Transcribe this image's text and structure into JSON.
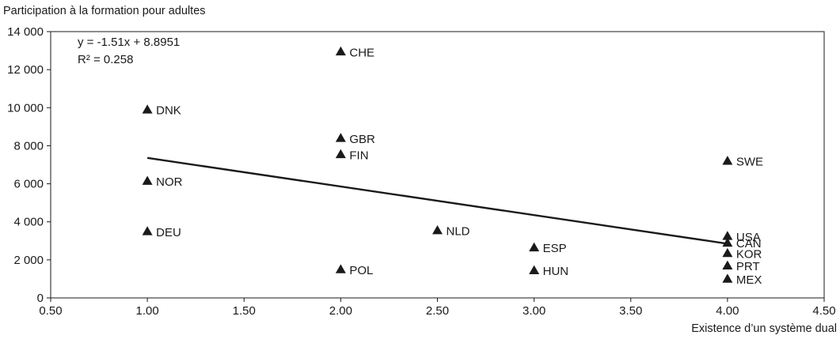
{
  "chart_data": {
    "type": "scatter",
    "ylabel": "Participation à la formation pour adultes",
    "xlabel": "Existence d’un système dual",
    "xlim": [
      0.5,
      4.5
    ],
    "ylim": [
      0,
      14000
    ],
    "x_ticks": [
      0.5,
      1.0,
      1.5,
      2.0,
      2.5,
      3.0,
      3.5,
      4.0,
      4.5
    ],
    "x_tick_labels": [
      "0.50",
      "1.00",
      "1.50",
      "2.00",
      "2.50",
      "3.00",
      "3.50",
      "4.00",
      "4.50"
    ],
    "y_ticks": [
      0,
      2000,
      4000,
      6000,
      8000,
      10000,
      12000,
      14000
    ],
    "y_tick_labels": [
      "0",
      "2 000",
      "4 000",
      "6 000",
      "8 000",
      "10 000",
      "12 000",
      "14 000"
    ],
    "grid": false,
    "marker": "triangle",
    "marker_color": "#1a1a1a",
    "line_color": "#1a1a1a",
    "points": [
      {
        "label": "DNK",
        "x": 1.0,
        "y": 9900
      },
      {
        "label": "NOR",
        "x": 1.0,
        "y": 6150
      },
      {
        "label": "DEU",
        "x": 1.0,
        "y": 3500
      },
      {
        "label": "CHE",
        "x": 2.0,
        "y": 12950
      },
      {
        "label": "GBR",
        "x": 2.0,
        "y": 8400
      },
      {
        "label": "FIN",
        "x": 2.0,
        "y": 7550
      },
      {
        "label": "POL",
        "x": 2.0,
        "y": 1500
      },
      {
        "label": "NLD",
        "x": 2.5,
        "y": 3550
      },
      {
        "label": "ESP",
        "x": 3.0,
        "y": 2650
      },
      {
        "label": "HUN",
        "x": 3.0,
        "y": 1450
      },
      {
        "label": "SWE",
        "x": 4.0,
        "y": 7200
      },
      {
        "label": "USA",
        "x": 4.0,
        "y": 3250
      },
      {
        "label": "CAN",
        "x": 4.0,
        "y": 2900
      },
      {
        "label": "KOR",
        "x": 4.0,
        "y": 2350
      },
      {
        "label": "PRT",
        "x": 4.0,
        "y": 1700
      },
      {
        "label": "MEX",
        "x": 4.0,
        "y": 1000
      }
    ],
    "trendline": {
      "x_start": 1.0,
      "y_start": 7360,
      "x_end": 4.0,
      "y_end": 2850
    },
    "annotations": {
      "equation": "y = -1.51x + 8.8951",
      "r_squared": "R² = 0.258"
    }
  }
}
